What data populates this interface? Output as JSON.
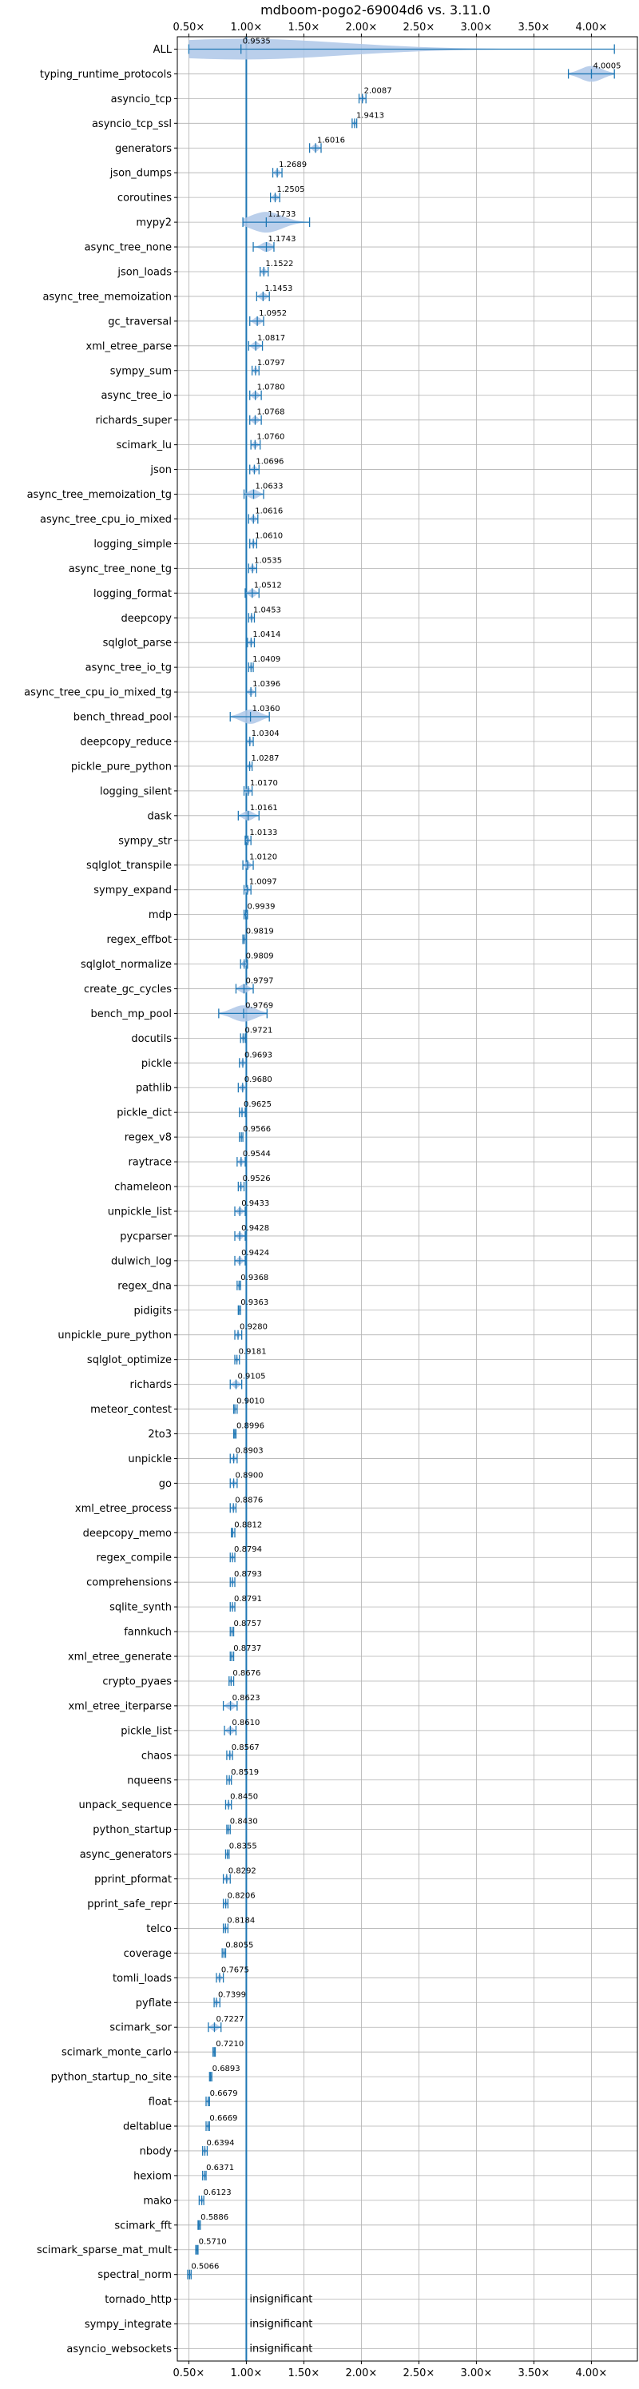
{
  "chart_data": {
    "type": "violin",
    "title": "mdboom-pogo2-69004d6 vs. 3.11.0",
    "xlabel": "",
    "ylabel": "",
    "xlim": [
      0.4,
      4.4
    ],
    "x_ticks": [
      0.5,
      1.0,
      1.5,
      2.0,
      2.5,
      3.0,
      3.5,
      4.0
    ],
    "x_tick_labels": [
      "0.50×",
      "1.00×",
      "1.50×",
      "2.00×",
      "2.50×",
      "3.00×",
      "3.50×",
      "4.00×"
    ],
    "reference_line": 1.0,
    "grid": true,
    "colors": {
      "violin": "#1f77b4",
      "fill": "#aec7e8",
      "grid": "#b0b0b0"
    },
    "insignificant_text": "insignificant",
    "rows": [
      {
        "name": "ALL",
        "value": 0.9535,
        "label": "0.9535",
        "min": 0.5,
        "max": 4.2
      },
      {
        "name": "typing_runtime_protocols",
        "value": 4.0005,
        "label": "4.0005",
        "min": 3.8,
        "max": 4.2
      },
      {
        "name": "asyncio_tcp",
        "value": 2.0087,
        "label": "2.0087",
        "min": 1.98,
        "max": 2.04
      },
      {
        "name": "asyncio_tcp_ssl",
        "value": 1.9413,
        "label": "1.9413",
        "min": 1.92,
        "max": 1.96
      },
      {
        "name": "generators",
        "value": 1.6016,
        "label": "1.6016",
        "min": 1.55,
        "max": 1.65
      },
      {
        "name": "json_dumps",
        "value": 1.2689,
        "label": "1.2689",
        "min": 1.23,
        "max": 1.31
      },
      {
        "name": "coroutines",
        "value": 1.2505,
        "label": "1.2505",
        "min": 1.21,
        "max": 1.29
      },
      {
        "name": "mypy2",
        "value": 1.1733,
        "label": "1.1733",
        "min": 0.97,
        "max": 1.55
      },
      {
        "name": "async_tree_none",
        "value": 1.1743,
        "label": "1.1743",
        "min": 1.06,
        "max": 1.24
      },
      {
        "name": "json_loads",
        "value": 1.1522,
        "label": "1.1522",
        "min": 1.12,
        "max": 1.19
      },
      {
        "name": "async_tree_memoization",
        "value": 1.1453,
        "label": "1.1453",
        "min": 1.09,
        "max": 1.2
      },
      {
        "name": "gc_traversal",
        "value": 1.0952,
        "label": "1.0952",
        "min": 1.03,
        "max": 1.15
      },
      {
        "name": "xml_etree_parse",
        "value": 1.0817,
        "label": "1.0817",
        "min": 1.02,
        "max": 1.14
      },
      {
        "name": "sympy_sum",
        "value": 1.0797,
        "label": "1.0797",
        "min": 1.05,
        "max": 1.11
      },
      {
        "name": "async_tree_io",
        "value": 1.078,
        "label": "1.0780",
        "min": 1.03,
        "max": 1.13
      },
      {
        "name": "richards_super",
        "value": 1.0768,
        "label": "1.0768",
        "min": 1.03,
        "max": 1.13
      },
      {
        "name": "scimark_lu",
        "value": 1.076,
        "label": "1.0760",
        "min": 1.04,
        "max": 1.12
      },
      {
        "name": "json",
        "value": 1.0696,
        "label": "1.0696",
        "min": 1.03,
        "max": 1.11
      },
      {
        "name": "async_tree_memoization_tg",
        "value": 1.0633,
        "label": "1.0633",
        "min": 0.98,
        "max": 1.15
      },
      {
        "name": "async_tree_cpu_io_mixed",
        "value": 1.0616,
        "label": "1.0616",
        "min": 1.02,
        "max": 1.1
      },
      {
        "name": "logging_simple",
        "value": 1.061,
        "label": "1.0610",
        "min": 1.03,
        "max": 1.09
      },
      {
        "name": "async_tree_none_tg",
        "value": 1.0535,
        "label": "1.0535",
        "min": 1.02,
        "max": 1.09
      },
      {
        "name": "logging_format",
        "value": 1.0512,
        "label": "1.0512",
        "min": 0.99,
        "max": 1.11
      },
      {
        "name": "deepcopy",
        "value": 1.0453,
        "label": "1.0453",
        "min": 1.02,
        "max": 1.07
      },
      {
        "name": "sqlglot_parse",
        "value": 1.0414,
        "label": "1.0414",
        "min": 1.01,
        "max": 1.07
      },
      {
        "name": "async_tree_io_tg",
        "value": 1.0409,
        "label": "1.0409",
        "min": 1.02,
        "max": 1.06
      },
      {
        "name": "async_tree_cpu_io_mixed_tg",
        "value": 1.0396,
        "label": "1.0396",
        "min": 1.0,
        "max": 1.08
      },
      {
        "name": "bench_thread_pool",
        "value": 1.036,
        "label": "1.0360",
        "min": 0.86,
        "max": 1.2
      },
      {
        "name": "deepcopy_reduce",
        "value": 1.0304,
        "label": "1.0304",
        "min": 1.0,
        "max": 1.06
      },
      {
        "name": "pickle_pure_python",
        "value": 1.0287,
        "label": "1.0287",
        "min": 1.0,
        "max": 1.05
      },
      {
        "name": "logging_silent",
        "value": 1.017,
        "label": "1.0170",
        "min": 0.98,
        "max": 1.05
      },
      {
        "name": "dask",
        "value": 1.0161,
        "label": "1.0161",
        "min": 0.93,
        "max": 1.11
      },
      {
        "name": "sympy_str",
        "value": 1.0133,
        "label": "1.0133",
        "min": 0.99,
        "max": 1.04
      },
      {
        "name": "sqlglot_transpile",
        "value": 1.012,
        "label": "1.0120",
        "min": 0.97,
        "max": 1.06
      },
      {
        "name": "sympy_expand",
        "value": 1.0097,
        "label": "1.0097",
        "min": 0.98,
        "max": 1.04
      },
      {
        "name": "mdp",
        "value": 0.9939,
        "label": "0.9939",
        "min": 0.98,
        "max": 1.01
      },
      {
        "name": "regex_effbot",
        "value": 0.9819,
        "label": "0.9819",
        "min": 0.97,
        "max": 1.0
      },
      {
        "name": "sqlglot_normalize",
        "value": 0.9809,
        "label": "0.9809",
        "min": 0.95,
        "max": 1.01
      },
      {
        "name": "create_gc_cycles",
        "value": 0.9797,
        "label": "0.9797",
        "min": 0.91,
        "max": 1.06
      },
      {
        "name": "bench_mp_pool",
        "value": 0.9769,
        "label": "0.9769",
        "min": 0.76,
        "max": 1.18
      },
      {
        "name": "docutils",
        "value": 0.9721,
        "label": "0.9721",
        "min": 0.95,
        "max": 0.99
      },
      {
        "name": "pickle",
        "value": 0.9693,
        "label": "0.9693",
        "min": 0.94,
        "max": 1.0
      },
      {
        "name": "pathlib",
        "value": 0.968,
        "label": "0.9680",
        "min": 0.93,
        "max": 1.0
      },
      {
        "name": "pickle_dict",
        "value": 0.9625,
        "label": "0.9625",
        "min": 0.94,
        "max": 0.99
      },
      {
        "name": "regex_v8",
        "value": 0.9566,
        "label": "0.9566",
        "min": 0.94,
        "max": 0.97
      },
      {
        "name": "raytrace",
        "value": 0.9544,
        "label": "0.9544",
        "min": 0.92,
        "max": 0.99
      },
      {
        "name": "chameleon",
        "value": 0.9526,
        "label": "0.9526",
        "min": 0.93,
        "max": 0.98
      },
      {
        "name": "unpickle_list",
        "value": 0.9433,
        "label": "0.9433",
        "min": 0.9,
        "max": 0.99
      },
      {
        "name": "pycparser",
        "value": 0.9428,
        "label": "0.9428",
        "min": 0.9,
        "max": 0.99
      },
      {
        "name": "dulwich_log",
        "value": 0.9424,
        "label": "0.9424",
        "min": 0.9,
        "max": 0.99
      },
      {
        "name": "regex_dna",
        "value": 0.9368,
        "label": "0.9368",
        "min": 0.92,
        "max": 0.95
      },
      {
        "name": "pidigits",
        "value": 0.9363,
        "label": "0.9363",
        "min": 0.93,
        "max": 0.95
      },
      {
        "name": "unpickle_pure_python",
        "value": 0.928,
        "label": "0.9280",
        "min": 0.9,
        "max": 0.96
      },
      {
        "name": "sqlglot_optimize",
        "value": 0.9181,
        "label": "0.9181",
        "min": 0.9,
        "max": 0.94
      },
      {
        "name": "richards",
        "value": 0.9105,
        "label": "0.9105",
        "min": 0.86,
        "max": 0.96
      },
      {
        "name": "meteor_contest",
        "value": 0.901,
        "label": "0.9010",
        "min": 0.89,
        "max": 0.92
      },
      {
        "name": "2to3",
        "value": 0.8996,
        "label": "0.8996",
        "min": 0.89,
        "max": 0.91
      },
      {
        "name": "unpickle",
        "value": 0.8903,
        "label": "0.8903",
        "min": 0.86,
        "max": 0.92
      },
      {
        "name": "go",
        "value": 0.89,
        "label": "0.8900",
        "min": 0.86,
        "max": 0.92
      },
      {
        "name": "xml_etree_process",
        "value": 0.8876,
        "label": "0.8876",
        "min": 0.86,
        "max": 0.91
      },
      {
        "name": "deepcopy_memo",
        "value": 0.8812,
        "label": "0.8812",
        "min": 0.87,
        "max": 0.9
      },
      {
        "name": "regex_compile",
        "value": 0.8794,
        "label": "0.8794",
        "min": 0.86,
        "max": 0.9
      },
      {
        "name": "comprehensions",
        "value": 0.8793,
        "label": "0.8793",
        "min": 0.86,
        "max": 0.9
      },
      {
        "name": "sqlite_synth",
        "value": 0.8791,
        "label": "0.8791",
        "min": 0.86,
        "max": 0.9
      },
      {
        "name": "fannkuch",
        "value": 0.8757,
        "label": "0.8757",
        "min": 0.86,
        "max": 0.89
      },
      {
        "name": "xml_etree_generate",
        "value": 0.8737,
        "label": "0.8737",
        "min": 0.86,
        "max": 0.89
      },
      {
        "name": "crypto_pyaes",
        "value": 0.8676,
        "label": "0.8676",
        "min": 0.85,
        "max": 0.89
      },
      {
        "name": "xml_etree_iterparse",
        "value": 0.8623,
        "label": "0.8623",
        "min": 0.8,
        "max": 0.92
      },
      {
        "name": "pickle_list",
        "value": 0.861,
        "label": "0.8610",
        "min": 0.81,
        "max": 0.91
      },
      {
        "name": "chaos",
        "value": 0.8567,
        "label": "0.8567",
        "min": 0.83,
        "max": 0.88
      },
      {
        "name": "nqueens",
        "value": 0.8519,
        "label": "0.8519",
        "min": 0.83,
        "max": 0.87
      },
      {
        "name": "unpack_sequence",
        "value": 0.845,
        "label": "0.8450",
        "min": 0.82,
        "max": 0.87
      },
      {
        "name": "python_startup",
        "value": 0.843,
        "label": "0.8430",
        "min": 0.83,
        "max": 0.86
      },
      {
        "name": "async_generators",
        "value": 0.8355,
        "label": "0.8355",
        "min": 0.82,
        "max": 0.85
      },
      {
        "name": "pprint_pformat",
        "value": 0.8292,
        "label": "0.8292",
        "min": 0.8,
        "max": 0.86
      },
      {
        "name": "pprint_safe_repr",
        "value": 0.8206,
        "label": "0.8206",
        "min": 0.8,
        "max": 0.84
      },
      {
        "name": "telco",
        "value": 0.8184,
        "label": "0.8184",
        "min": 0.8,
        "max": 0.84
      },
      {
        "name": "coverage",
        "value": 0.8055,
        "label": "0.8055",
        "min": 0.79,
        "max": 0.82
      },
      {
        "name": "tomli_loads",
        "value": 0.7675,
        "label": "0.7675",
        "min": 0.74,
        "max": 0.8
      },
      {
        "name": "pyflate",
        "value": 0.7399,
        "label": "0.7399",
        "min": 0.72,
        "max": 0.77
      },
      {
        "name": "scimark_sor",
        "value": 0.7227,
        "label": "0.7227",
        "min": 0.67,
        "max": 0.78
      },
      {
        "name": "scimark_monte_carlo",
        "value": 0.721,
        "label": "0.7210",
        "min": 0.71,
        "max": 0.73
      },
      {
        "name": "python_startup_no_site",
        "value": 0.6893,
        "label": "0.6893",
        "min": 0.68,
        "max": 0.7
      },
      {
        "name": "float",
        "value": 0.6679,
        "label": "0.6679",
        "min": 0.65,
        "max": 0.68
      },
      {
        "name": "deltablue",
        "value": 0.6669,
        "label": "0.6669",
        "min": 0.65,
        "max": 0.68
      },
      {
        "name": "nbody",
        "value": 0.6394,
        "label": "0.6394",
        "min": 0.62,
        "max": 0.66
      },
      {
        "name": "hexiom",
        "value": 0.6371,
        "label": "0.6371",
        "min": 0.62,
        "max": 0.65
      },
      {
        "name": "mako",
        "value": 0.6123,
        "label": "0.6123",
        "min": 0.59,
        "max": 0.63
      },
      {
        "name": "scimark_fft",
        "value": 0.5886,
        "label": "0.5886",
        "min": 0.58,
        "max": 0.6
      },
      {
        "name": "scimark_sparse_mat_mult",
        "value": 0.571,
        "label": "0.5710",
        "min": 0.56,
        "max": 0.58
      },
      {
        "name": "spectral_norm",
        "value": 0.5066,
        "label": "0.5066",
        "min": 0.49,
        "max": 0.52
      },
      {
        "name": "tornado_http",
        "value": null,
        "label": "",
        "insignificant": true
      },
      {
        "name": "sympy_integrate",
        "value": null,
        "label": "",
        "insignificant": true
      },
      {
        "name": "asyncio_websockets",
        "value": null,
        "label": "",
        "insignificant": true
      }
    ]
  }
}
